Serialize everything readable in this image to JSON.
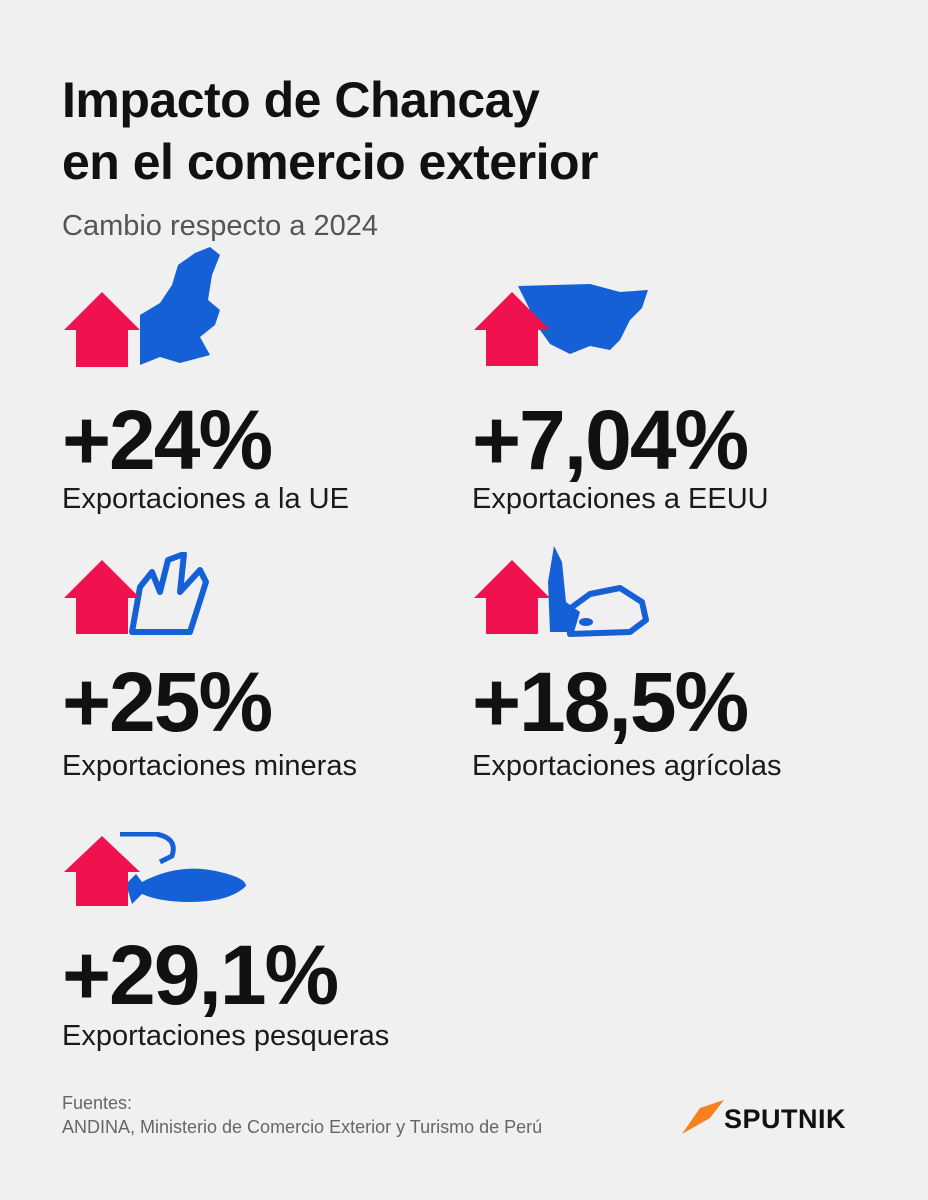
{
  "title_lines": [
    "Impacto de Chancay",
    "en el comercio exterior"
  ],
  "subtitle": "Cambio respecto a 2024",
  "items": [
    {
      "value": "+24%",
      "label": "Exportaciones a la UE"
    },
    {
      "value": "+7,04%",
      "label": "Exportaciones a EEUU"
    },
    {
      "value": "+25%",
      "label": "Exportaciones mineras"
    },
    {
      "value": "+18,5%",
      "label": "Exportaciones agrícolas"
    },
    {
      "value": "+29,1%",
      "label": "Exportaciones pesqueras"
    }
  ],
  "sources": {
    "heading": "Fuentes:",
    "text": "ANDINA, Ministerio de Comercio Exterior y Turismo de Perú"
  },
  "brand": "SPUTNIK"
}
